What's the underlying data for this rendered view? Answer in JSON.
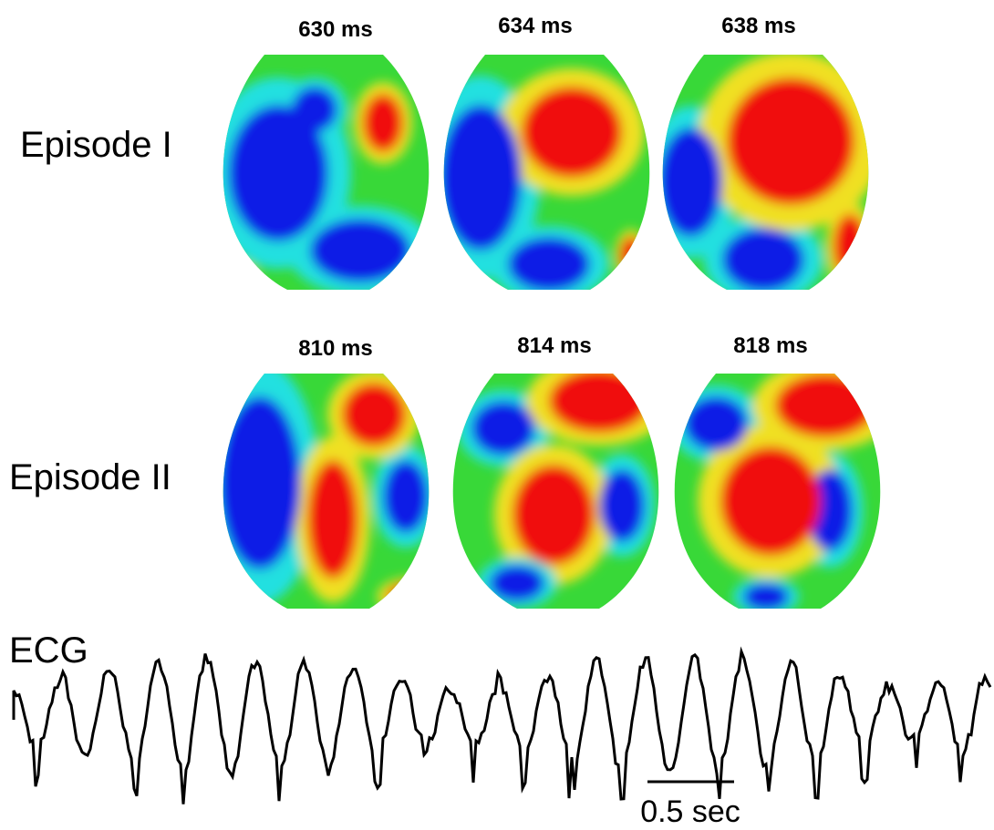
{
  "rows": [
    {
      "label": "Episode I",
      "frames": [
        "630 ms",
        "634 ms",
        "638 ms"
      ]
    },
    {
      "label": "Episode II",
      "frames": [
        "810 ms",
        "814 ms",
        "818 ms"
      ]
    }
  ],
  "ecg": {
    "label": "ECG",
    "scale_bar": "0.5 sec"
  }
}
